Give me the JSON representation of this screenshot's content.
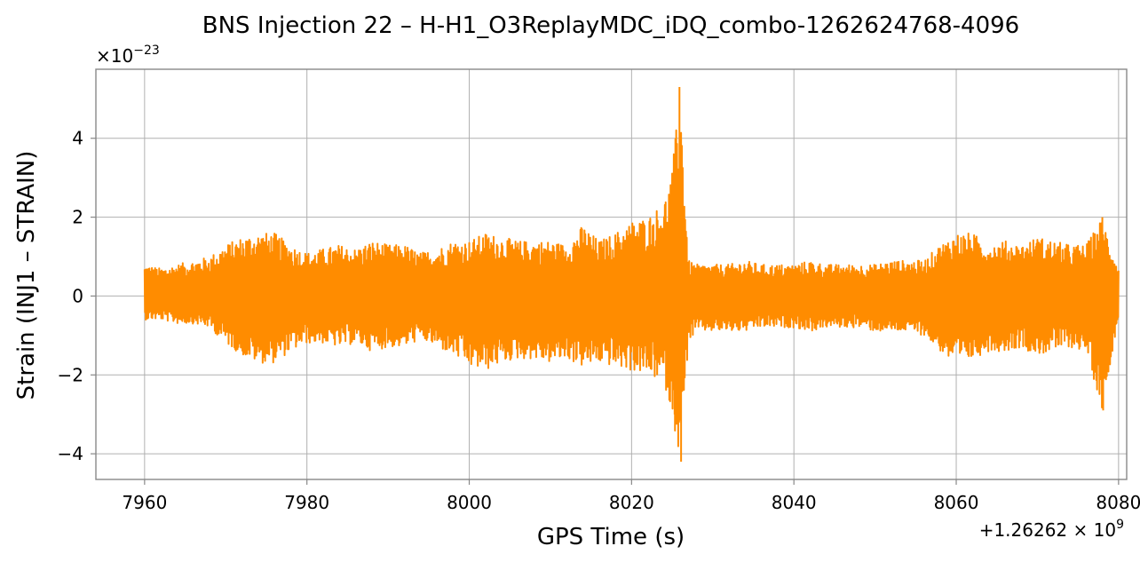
{
  "chart_data": {
    "type": "line",
    "title": "BNS Injection 22 – H-H1_O3ReplayMDC_iDQ_combo-1262624768-4096",
    "xlabel": "GPS Time (s)",
    "ylabel": "Strain (INJ1 – STRAIN)",
    "x_offset_label": {
      "prefix": "+1.26262 × 10",
      "exp": "9"
    },
    "y_scale_label": {
      "prefix": "×10",
      "exp": "−23"
    },
    "xlim": [
      7954,
      8081
    ],
    "ylim": [
      -4.65,
      5.75
    ],
    "x_ticks": [
      7960,
      7980,
      8000,
      8020,
      8040,
      8060,
      8080
    ],
    "x_tick_labels": [
      "7960",
      "7980",
      "8000",
      "8020",
      "8040",
      "8060",
      "8080"
    ],
    "y_ticks": [
      -4,
      -2,
      0,
      2,
      4
    ],
    "y_tick_labels": [
      "−4",
      "−2",
      "0",
      "2",
      "4"
    ],
    "grid": true,
    "color": "#ff8c00",
    "series": [
      {
        "values_description_x": [
          7960,
          7962,
          7964,
          7966,
          7968,
          7970,
          7972,
          7974,
          7976,
          7978,
          7980,
          7982,
          7984,
          7986,
          7988,
          7990,
          7992,
          7994,
          7996,
          7998,
          8000,
          8002,
          8004,
          8006,
          8008,
          8010,
          8012,
          8014,
          8016,
          8018,
          8020,
          8022,
          8024,
          8025,
          8026,
          8027,
          8028,
          8030,
          8032,
          8034,
          8036,
          8038,
          8040,
          8042,
          8044,
          8046,
          8048,
          8050,
          8052,
          8054,
          8056,
          8058,
          8060,
          8062,
          8064,
          8066,
          8068,
          8070,
          8072,
          8074,
          8076,
          8078,
          8080
        ],
        "upper_envelope": [
          0.8,
          0.7,
          0.8,
          0.9,
          1.0,
          1.3,
          1.5,
          1.6,
          1.6,
          1.3,
          1.1,
          1.2,
          1.3,
          1.2,
          1.4,
          1.3,
          1.3,
          1.1,
          1.2,
          1.4,
          1.4,
          1.6,
          1.5,
          1.4,
          1.4,
          1.4,
          1.3,
          1.8,
          1.4,
          1.6,
          1.9,
          2.0,
          2.4,
          3.2,
          5.3,
          0.9,
          0.8,
          0.8,
          0.8,
          0.9,
          0.8,
          0.8,
          0.8,
          0.9,
          0.8,
          0.8,
          0.8,
          0.8,
          0.9,
          0.9,
          0.9,
          1.3,
          1.6,
          1.6,
          1.3,
          1.4,
          1.3,
          1.5,
          1.4,
          1.3,
          1.3,
          2.0,
          0.7
        ],
        "lower_envelope": [
          -0.6,
          -0.6,
          -0.7,
          -0.7,
          -0.8,
          -1.2,
          -1.5,
          -1.7,
          -1.7,
          -1.4,
          -1.2,
          -1.2,
          -1.3,
          -1.2,
          -1.4,
          -1.3,
          -1.3,
          -1.1,
          -1.3,
          -1.5,
          -1.8,
          -1.9,
          -1.7,
          -1.6,
          -1.6,
          -1.7,
          -1.6,
          -1.8,
          -1.7,
          -1.8,
          -1.9,
          -2.0,
          -2.2,
          -3.0,
          -4.2,
          -1.2,
          -0.9,
          -0.9,
          -0.9,
          -0.9,
          -0.8,
          -0.8,
          -0.8,
          -0.9,
          -0.8,
          -0.8,
          -0.8,
          -0.9,
          -0.9,
          -0.9,
          -1.0,
          -1.4,
          -1.8,
          -1.6,
          -1.4,
          -1.4,
          -1.3,
          -1.5,
          -1.4,
          -1.3,
          -1.4,
          -2.9,
          -0.5
        ]
      }
    ]
  }
}
